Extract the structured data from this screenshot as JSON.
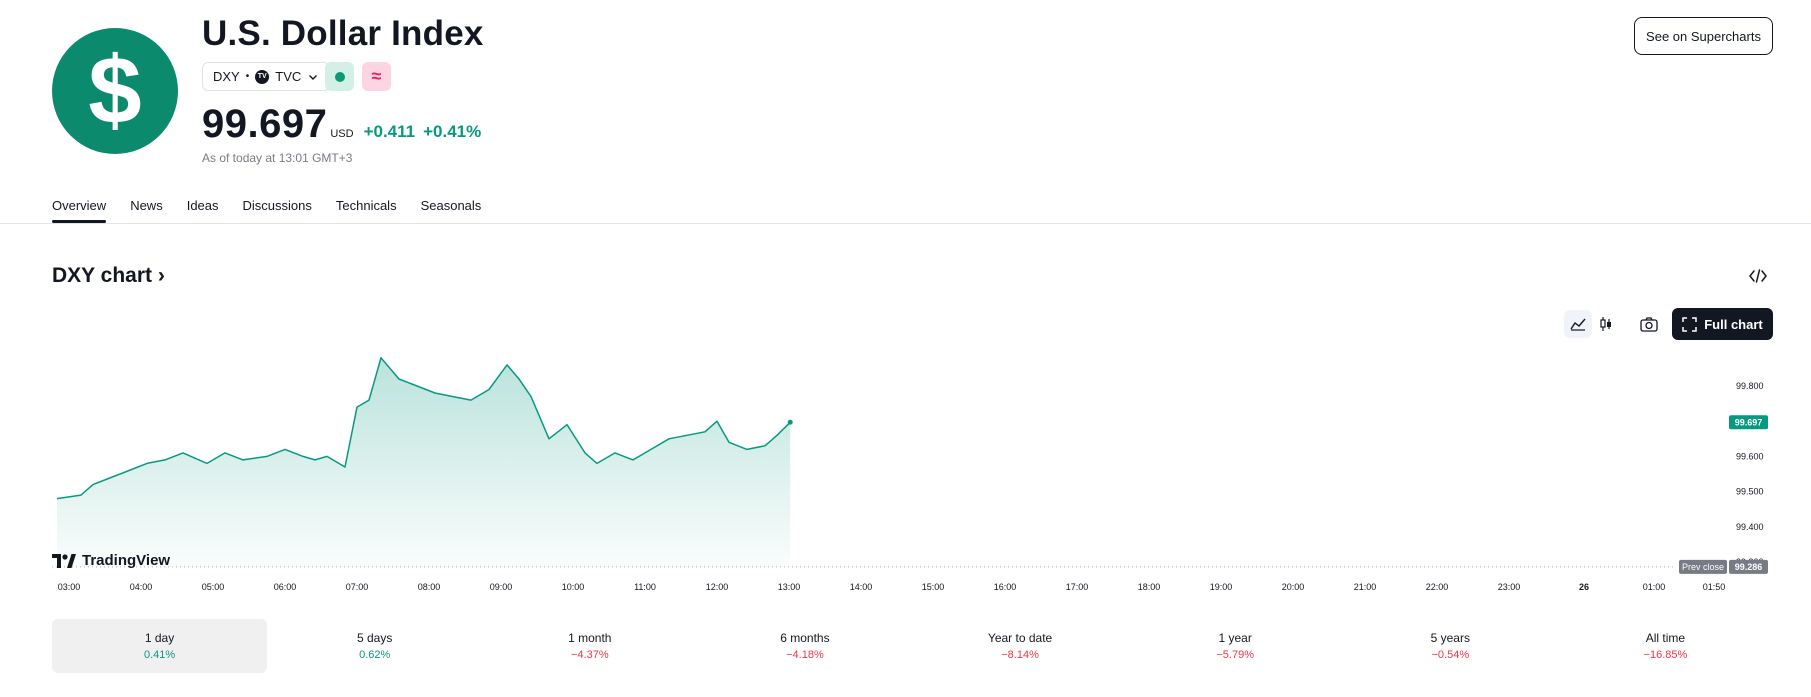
{
  "header": {
    "title": "U.S. Dollar Index",
    "symbol": "DXY",
    "exchange": "TVC",
    "price": "99.697",
    "currency": "USD",
    "change_abs": "+0.411",
    "change_pct": "+0.41%",
    "as_of": "As of today at 13:01 GMT+3",
    "logo_symbol": "$",
    "see_button": "See on Supercharts"
  },
  "tabs": [
    "Overview",
    "News",
    "Ideas",
    "Discussions",
    "Technicals",
    "Seasonals"
  ],
  "chart_section": {
    "title": "DXY chart",
    "full_chart_label": "Full chart",
    "brand": "TradingView"
  },
  "chart_data": {
    "type": "area",
    "line_color": "#089981",
    "y_ticks": [
      "99.800",
      "99.700",
      "99.600",
      "99.500",
      "99.400",
      "99.300"
    ],
    "current_price_label": "99.697",
    "prev_close_label": "Prev close",
    "prev_close_value": "99.286",
    "prev_close": 99.286,
    "x_ticks": [
      "03:00",
      "04:00",
      "05:00",
      "06:00",
      "07:00",
      "08:00",
      "09:00",
      "10:00",
      "11:00",
      "12:00",
      "13:00",
      "14:00",
      "15:00",
      "16:00",
      "17:00",
      "18:00",
      "19:00",
      "20:00",
      "21:00",
      "22:00",
      "23:00",
      "26",
      "01:00",
      "01:50"
    ],
    "x": [
      "02:50",
      "03:10",
      "03:20",
      "03:35",
      "03:50",
      "04:05",
      "04:20",
      "04:35",
      "04:55",
      "05:10",
      "05:25",
      "05:45",
      "06:00",
      "06:15",
      "06:25",
      "06:35",
      "06:50",
      "07:00",
      "07:10",
      "07:20",
      "07:35",
      "07:50",
      "08:05",
      "08:20",
      "08:35",
      "08:50",
      "09:05",
      "09:15",
      "09:25",
      "09:40",
      "09:55",
      "10:10",
      "10:20",
      "10:35",
      "10:50",
      "11:05",
      "11:20",
      "11:35",
      "11:50",
      "12:00",
      "12:10",
      "12:25",
      "12:40",
      "12:50",
      "13:01"
    ],
    "values": [
      99.48,
      99.49,
      99.52,
      99.54,
      99.56,
      99.58,
      99.59,
      99.61,
      99.58,
      99.61,
      99.59,
      99.6,
      99.62,
      99.6,
      99.59,
      99.6,
      99.57,
      99.74,
      99.76,
      99.88,
      99.82,
      99.8,
      99.78,
      99.77,
      99.76,
      99.79,
      99.86,
      99.82,
      99.77,
      99.65,
      99.69,
      99.61,
      99.58,
      99.61,
      99.59,
      99.62,
      99.65,
      99.66,
      99.67,
      99.7,
      99.64,
      99.62,
      99.63,
      99.66,
      99.697
    ]
  },
  "periods": [
    {
      "label": "1 day",
      "value": "0.41%",
      "dir": "pos"
    },
    {
      "label": "5 days",
      "value": "0.62%",
      "dir": "pos"
    },
    {
      "label": "1 month",
      "value": "−4.37%",
      "dir": "neg"
    },
    {
      "label": "6 months",
      "value": "−4.18%",
      "dir": "neg"
    },
    {
      "label": "Year to date",
      "value": "−8.14%",
      "dir": "neg"
    },
    {
      "label": "1 year",
      "value": "−5.79%",
      "dir": "neg"
    },
    {
      "label": "5 years",
      "value": "−0.54%",
      "dir": "neg"
    },
    {
      "label": "All time",
      "value": "−16.85%",
      "dir": "neg"
    }
  ],
  "icons": {
    "logo": "dollar-sign-icon",
    "exchange": "tradingview-icon",
    "dropdown": "chevron-down-icon",
    "market_open": "market-open-dot-icon",
    "bond": "approx-icon",
    "embed": "code-icon",
    "line_chart": "area-chart-icon",
    "candle_chart": "candlestick-icon",
    "snapshot": "camera-icon",
    "fullscreen": "fullscreen-icon"
  }
}
